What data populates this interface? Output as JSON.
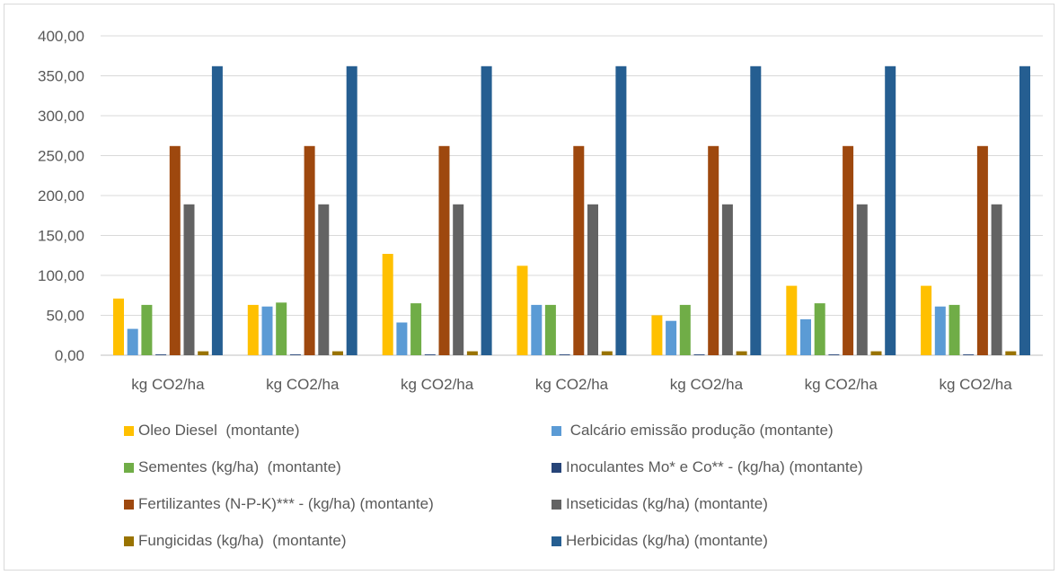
{
  "chart_data": {
    "type": "bar",
    "title": "",
    "xlabel": "",
    "ylabel": "",
    "ylim": [
      0,
      400
    ],
    "yticks": [
      "0,00",
      "50,00",
      "100,00",
      "150,00",
      "200,00",
      "250,00",
      "300,00",
      "350,00",
      "400,00"
    ],
    "categories": [
      "kg CO2/ha",
      "kg CO2/ha",
      "kg CO2/ha",
      "kg CO2/ha",
      "kg CO2/ha",
      "kg CO2/ha",
      "kg CO2/ha"
    ],
    "grid": true,
    "legend_position": "bottom",
    "series": [
      {
        "name": "Oleo Diesel  (montante)",
        "color": "#FFC000",
        "values": [
          71,
          63,
          127,
          112,
          50,
          87,
          87
        ]
      },
      {
        "name": " Calcário emissão produção (montante)",
        "color": "#5B9BD5",
        "values": [
          33,
          61,
          41,
          63,
          43,
          45,
          61
        ]
      },
      {
        "name": "Sementes (kg/ha)  (montante)",
        "color": "#70AD47",
        "values": [
          63,
          66,
          65,
          63,
          63,
          65,
          63
        ]
      },
      {
        "name": "Inoculantes Mo* e Co** - (kg/ha) (montante)",
        "color": "#264478",
        "values": [
          1,
          1,
          1,
          1,
          1,
          1,
          1
        ]
      },
      {
        "name": "Fertilizantes (N-P-K)*** - (kg/ha) (montante)",
        "color": "#9E480E",
        "values": [
          262,
          262,
          262,
          262,
          262,
          262,
          262
        ]
      },
      {
        "name": "Inseticidas (kg/ha) (montante)",
        "color": "#636363",
        "values": [
          189,
          189,
          189,
          189,
          189,
          189,
          189
        ]
      },
      {
        "name": "Fungicidas (kg/ha)  (montante)",
        "color": "#997300",
        "values": [
          5,
          5,
          5,
          5,
          5,
          5,
          5
        ]
      },
      {
        "name": "Herbicidas (kg/ha) (montante)",
        "color": "#255E91",
        "values": [
          362,
          362,
          362,
          362,
          362,
          362,
          362
        ]
      }
    ]
  }
}
